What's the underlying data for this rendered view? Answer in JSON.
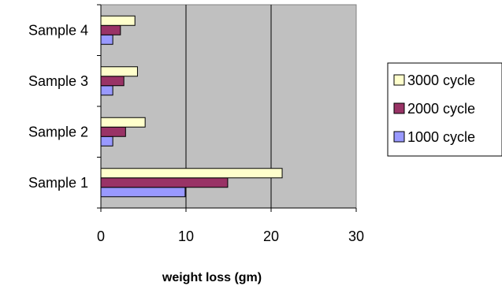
{
  "chart_data": {
    "type": "bar",
    "orientation": "horizontal",
    "categories": [
      "Sample 1",
      "Sample 2",
      "Sample 3",
      "Sample 4"
    ],
    "series": [
      {
        "name": "1000 cycle",
        "values": [
          9.9,
          1.4,
          1.4,
          1.4
        ],
        "color": "#9999ff"
      },
      {
        "name": "2000 cycle",
        "values": [
          14.9,
          2.9,
          2.7,
          2.3
        ],
        "color": "#993366"
      },
      {
        "name": "3000 cycle",
        "values": [
          21.3,
          5.2,
          4.3,
          4.0
        ],
        "color": "#ffffcc"
      }
    ],
    "x_ticks": [
      0,
      10,
      20,
      30
    ],
    "xlim": [
      0,
      30
    ],
    "xlabel": "weight loss (gm)",
    "ylabel": "",
    "title": "",
    "grid": "vertical",
    "plot_background": "#c0c0c0",
    "legend_position": "right"
  }
}
